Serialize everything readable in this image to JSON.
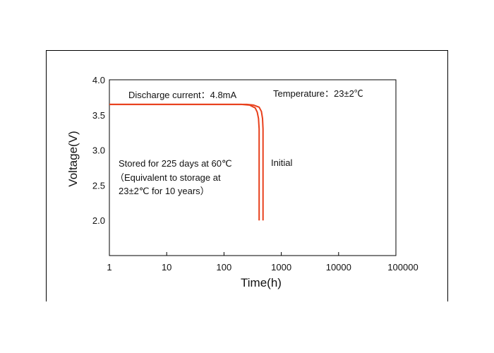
{
  "chart_data": {
    "type": "line",
    "xlabel": "Time(h)",
    "ylabel": "Voltage(V)",
    "xscale": "log",
    "xlim": [
      1,
      100000
    ],
    "ylim": [
      1.5,
      4.0
    ],
    "x_ticks": [
      "1",
      "10",
      "100",
      "1000",
      "10000",
      "100000"
    ],
    "y_ticks": [
      "4.0",
      "3.5",
      "3.0",
      "2.5",
      "2.0"
    ],
    "series": [
      {
        "name": "Initial",
        "color": "#e8401c",
        "x": [
          1,
          250,
          330,
          410,
          450,
          470,
          480,
          480
        ],
        "y": [
          3.65,
          3.65,
          3.64,
          3.61,
          3.55,
          3.45,
          3.3,
          2.0
        ]
      },
      {
        "name": "Stored for 225 days at 60℃",
        "color": "#e8401c",
        "x": [
          1,
          200,
          280,
          350,
          380,
          400,
          410,
          410
        ],
        "y": [
          3.65,
          3.65,
          3.64,
          3.6,
          3.54,
          3.45,
          3.3,
          2.0
        ]
      }
    ],
    "annotations": {
      "discharge": "Discharge current：4.8mA",
      "temperature": "Temperature：23±2℃",
      "initial": "Initial",
      "stored_line1": "Stored for 225 days at 60℃",
      "stored_line2": "（Equivalent to storage at",
      "stored_line3": "23±2℃ for 10 years）"
    }
  }
}
